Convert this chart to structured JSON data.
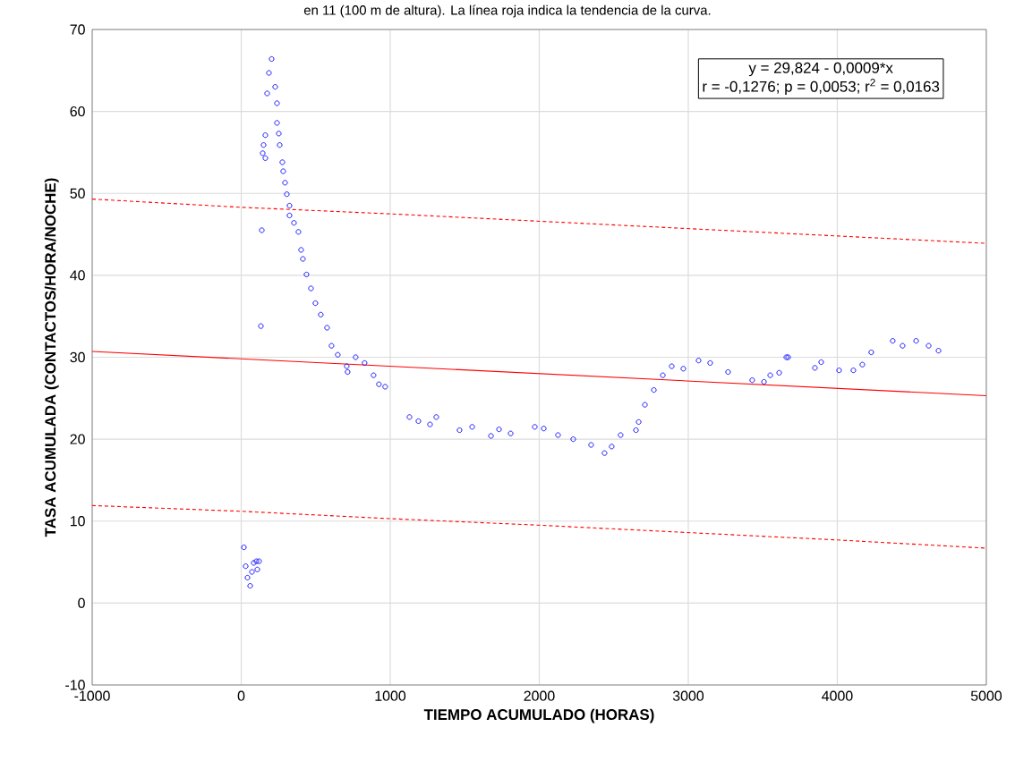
{
  "chart_data": {
    "type": "scatter",
    "xlabel": "TIEMPO ACUMULADO (HORAS)",
    "ylabel": "TASA ACUMULADA (CONTACTOS/HORA/NOCHE)",
    "annotations": [
      "y = 29,824 - 0,0009*x",
      "r = -0,1276; p = 0,0053; r$^{2}$ = 0,0163",
      "en 11 (100 m de altura). La línea roja indica la tendencia de la curva."
    ],
    "xlim": [
      -1000,
      5000
    ],
    "ylim": [
      -10,
      70
    ],
    "xticks": [
      -1000,
      0,
      1000,
      2000,
      3000,
      4000,
      5000
    ],
    "yticks": [
      -10,
      0,
      10,
      20,
      30,
      40,
      50,
      60,
      70
    ],
    "grid": true,
    "series": [
      {
        "marker": "circle",
        "color": "#0000ff",
        "x": [
          18,
          30,
          42,
          60,
          72,
          84,
          102,
          108,
          120,
          132,
          138,
          144,
          150,
          162,
          162,
          174,
          186,
          204,
          228,
          240,
          240,
          252,
          258,
          276,
          282,
          294,
          306,
          324,
          324,
          354,
          384,
          402,
          414,
          438,
          468,
          498,
          534,
          576,
          606,
          648,
          708,
          714,
          768,
          828,
          888,
          924,
          966,
          1129,
          1189,
          1267,
          1309,
          1465,
          1550,
          1676,
          1730,
          1808,
          1970,
          2030,
          2126,
          2228,
          2348,
          2438,
          2486,
          2546,
          2649,
          2667,
          2709,
          2769,
          2829,
          2889,
          2967,
          3069,
          3147,
          3267,
          3429,
          3508,
          3550,
          3610,
          3658,
          3670,
          3850,
          3892,
          4012,
          4108,
          4168,
          4228,
          4372,
          4438,
          4529,
          4613,
          4679
        ],
        "values": [
          6.8,
          4.5,
          3.1,
          2.1,
          3.8,
          4.9,
          5.1,
          4.1,
          5.1,
          33.8,
          45.5,
          54.9,
          55.9,
          57.1,
          54.3,
          62.2,
          64.7,
          66.4,
          63.0,
          61.0,
          58.6,
          57.3,
          55.9,
          53.8,
          52.7,
          51.3,
          49.9,
          48.5,
          47.3,
          46.4,
          45.3,
          43.1,
          42.0,
          40.1,
          38.4,
          36.6,
          35.2,
          33.6,
          31.4,
          30.3,
          28.9,
          28.2,
          30.0,
          29.3,
          27.8,
          26.7,
          26.4,
          22.7,
          22.2,
          21.8,
          22.7,
          21.1,
          21.5,
          20.4,
          21.2,
          20.7,
          21.5,
          21.3,
          20.5,
          20.0,
          19.3,
          18.3,
          19.1,
          20.5,
          21.1,
          22.1,
          24.2,
          26.0,
          27.8,
          28.9,
          28.6,
          29.6,
          29.3,
          28.2,
          27.2,
          27.0,
          27.8,
          28.1,
          30.0,
          30.0,
          28.7,
          29.4,
          28.4,
          28.4,
          29.1,
          30.6,
          32.0,
          31.4,
          32.0,
          31.4,
          30.8
        ]
      },
      {
        "type": "line",
        "line_style": "solid",
        "color": "#ff0000",
        "x": [
          -1000,
          5000
        ],
        "values": [
          30.7,
          25.3
        ]
      },
      {
        "type": "line",
        "line_style": "dashed",
        "color": "#ff0000",
        "x": [
          -1000,
          0,
          1000,
          2000,
          3000,
          4000,
          5000
        ],
        "values": [
          49.3,
          48.3,
          47.5,
          46.6,
          45.7,
          44.8,
          43.9
        ]
      },
      {
        "type": "line",
        "line_style": "dashed",
        "color": "#ff0000",
        "x": [
          -1000,
          0,
          1000,
          2000,
          3000,
          4000,
          5000
        ],
        "values": [
          11.9,
          11.2,
          10.3,
          9.5,
          8.6,
          7.7,
          6.7
        ]
      }
    ]
  }
}
